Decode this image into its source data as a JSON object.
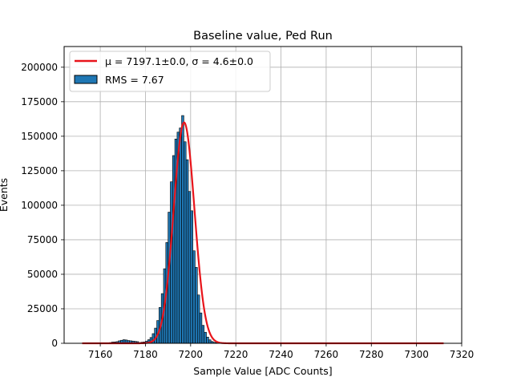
{
  "chart_data": {
    "type": "bar",
    "title": "Baseline value, Ped Run",
    "xlabel": "Sample Value [ADC Counts]",
    "ylabel": "Events",
    "xlim": [
      7144,
      7320
    ],
    "ylim": [
      0,
      215000
    ],
    "xticks": [
      7160,
      7180,
      7200,
      7220,
      7240,
      7260,
      7280,
      7300,
      7320
    ],
    "yticks": [
      0,
      25000,
      50000,
      75000,
      100000,
      125000,
      150000,
      175000,
      200000
    ],
    "grid": true,
    "legend_position": "top-left",
    "histogram": {
      "name": "RMS = 7.67",
      "bin_width": 1,
      "x": [
        7163,
        7164,
        7165,
        7166,
        7167,
        7168,
        7169,
        7170,
        7171,
        7172,
        7173,
        7174,
        7175,
        7176,
        7177,
        7178,
        7179,
        7180,
        7181,
        7182,
        7183,
        7184,
        7185,
        7186,
        7187,
        7188,
        7189,
        7190,
        7191,
        7192,
        7193,
        7194,
        7195,
        7196,
        7197,
        7198,
        7199,
        7200,
        7201,
        7202,
        7203,
        7204,
        7205,
        7206,
        7207,
        7208,
        7209,
        7210,
        7211,
        7212,
        7213,
        7214
      ],
      "values": [
        200,
        500,
        900,
        1000,
        1200,
        1800,
        2200,
        2600,
        2400,
        2000,
        1800,
        1600,
        1400,
        1200,
        500,
        800,
        1000,
        1600,
        2600,
        4200,
        7000,
        11000,
        16500,
        26000,
        36000,
        54000,
        73000,
        95000,
        117000,
        136000,
        148000,
        153000,
        156000,
        165000,
        146000,
        133000,
        110000,
        96000,
        67000,
        55000,
        35000,
        22000,
        13000,
        8000,
        4500,
        2500,
        1300,
        700,
        400,
        200,
        100,
        50
      ]
    },
    "fit": {
      "name": "μ = 7197.1±0.0, σ = 4.6±0.0",
      "type": "gaussian",
      "mu": 7197.1,
      "sigma": 4.6,
      "amplitude": 160000,
      "x_range": [
        7152,
        7312
      ],
      "color": "#e8141a"
    },
    "colors": {
      "bar_fill": "#1f77b4",
      "bar_edge": "#000000",
      "grid": "#b0b0b0"
    }
  }
}
